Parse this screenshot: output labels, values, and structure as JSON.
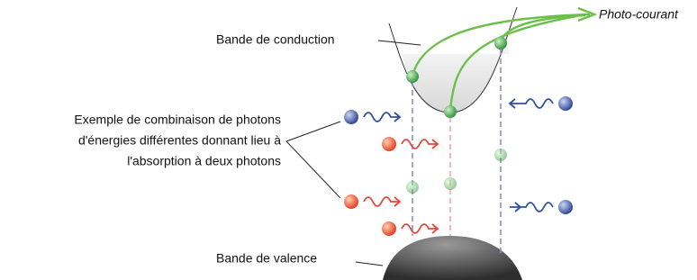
{
  "labels": {
    "conduction_band": "Bande de conduction",
    "photocurrent": "Photo-courant",
    "valence_band": "Bande de valence"
  },
  "example": {
    "lines": [
      "Exemple de combinaison de photons",
      "d'énergies différentes donnant lieu à",
      "l'absorption à deux photons"
    ]
  }
}
